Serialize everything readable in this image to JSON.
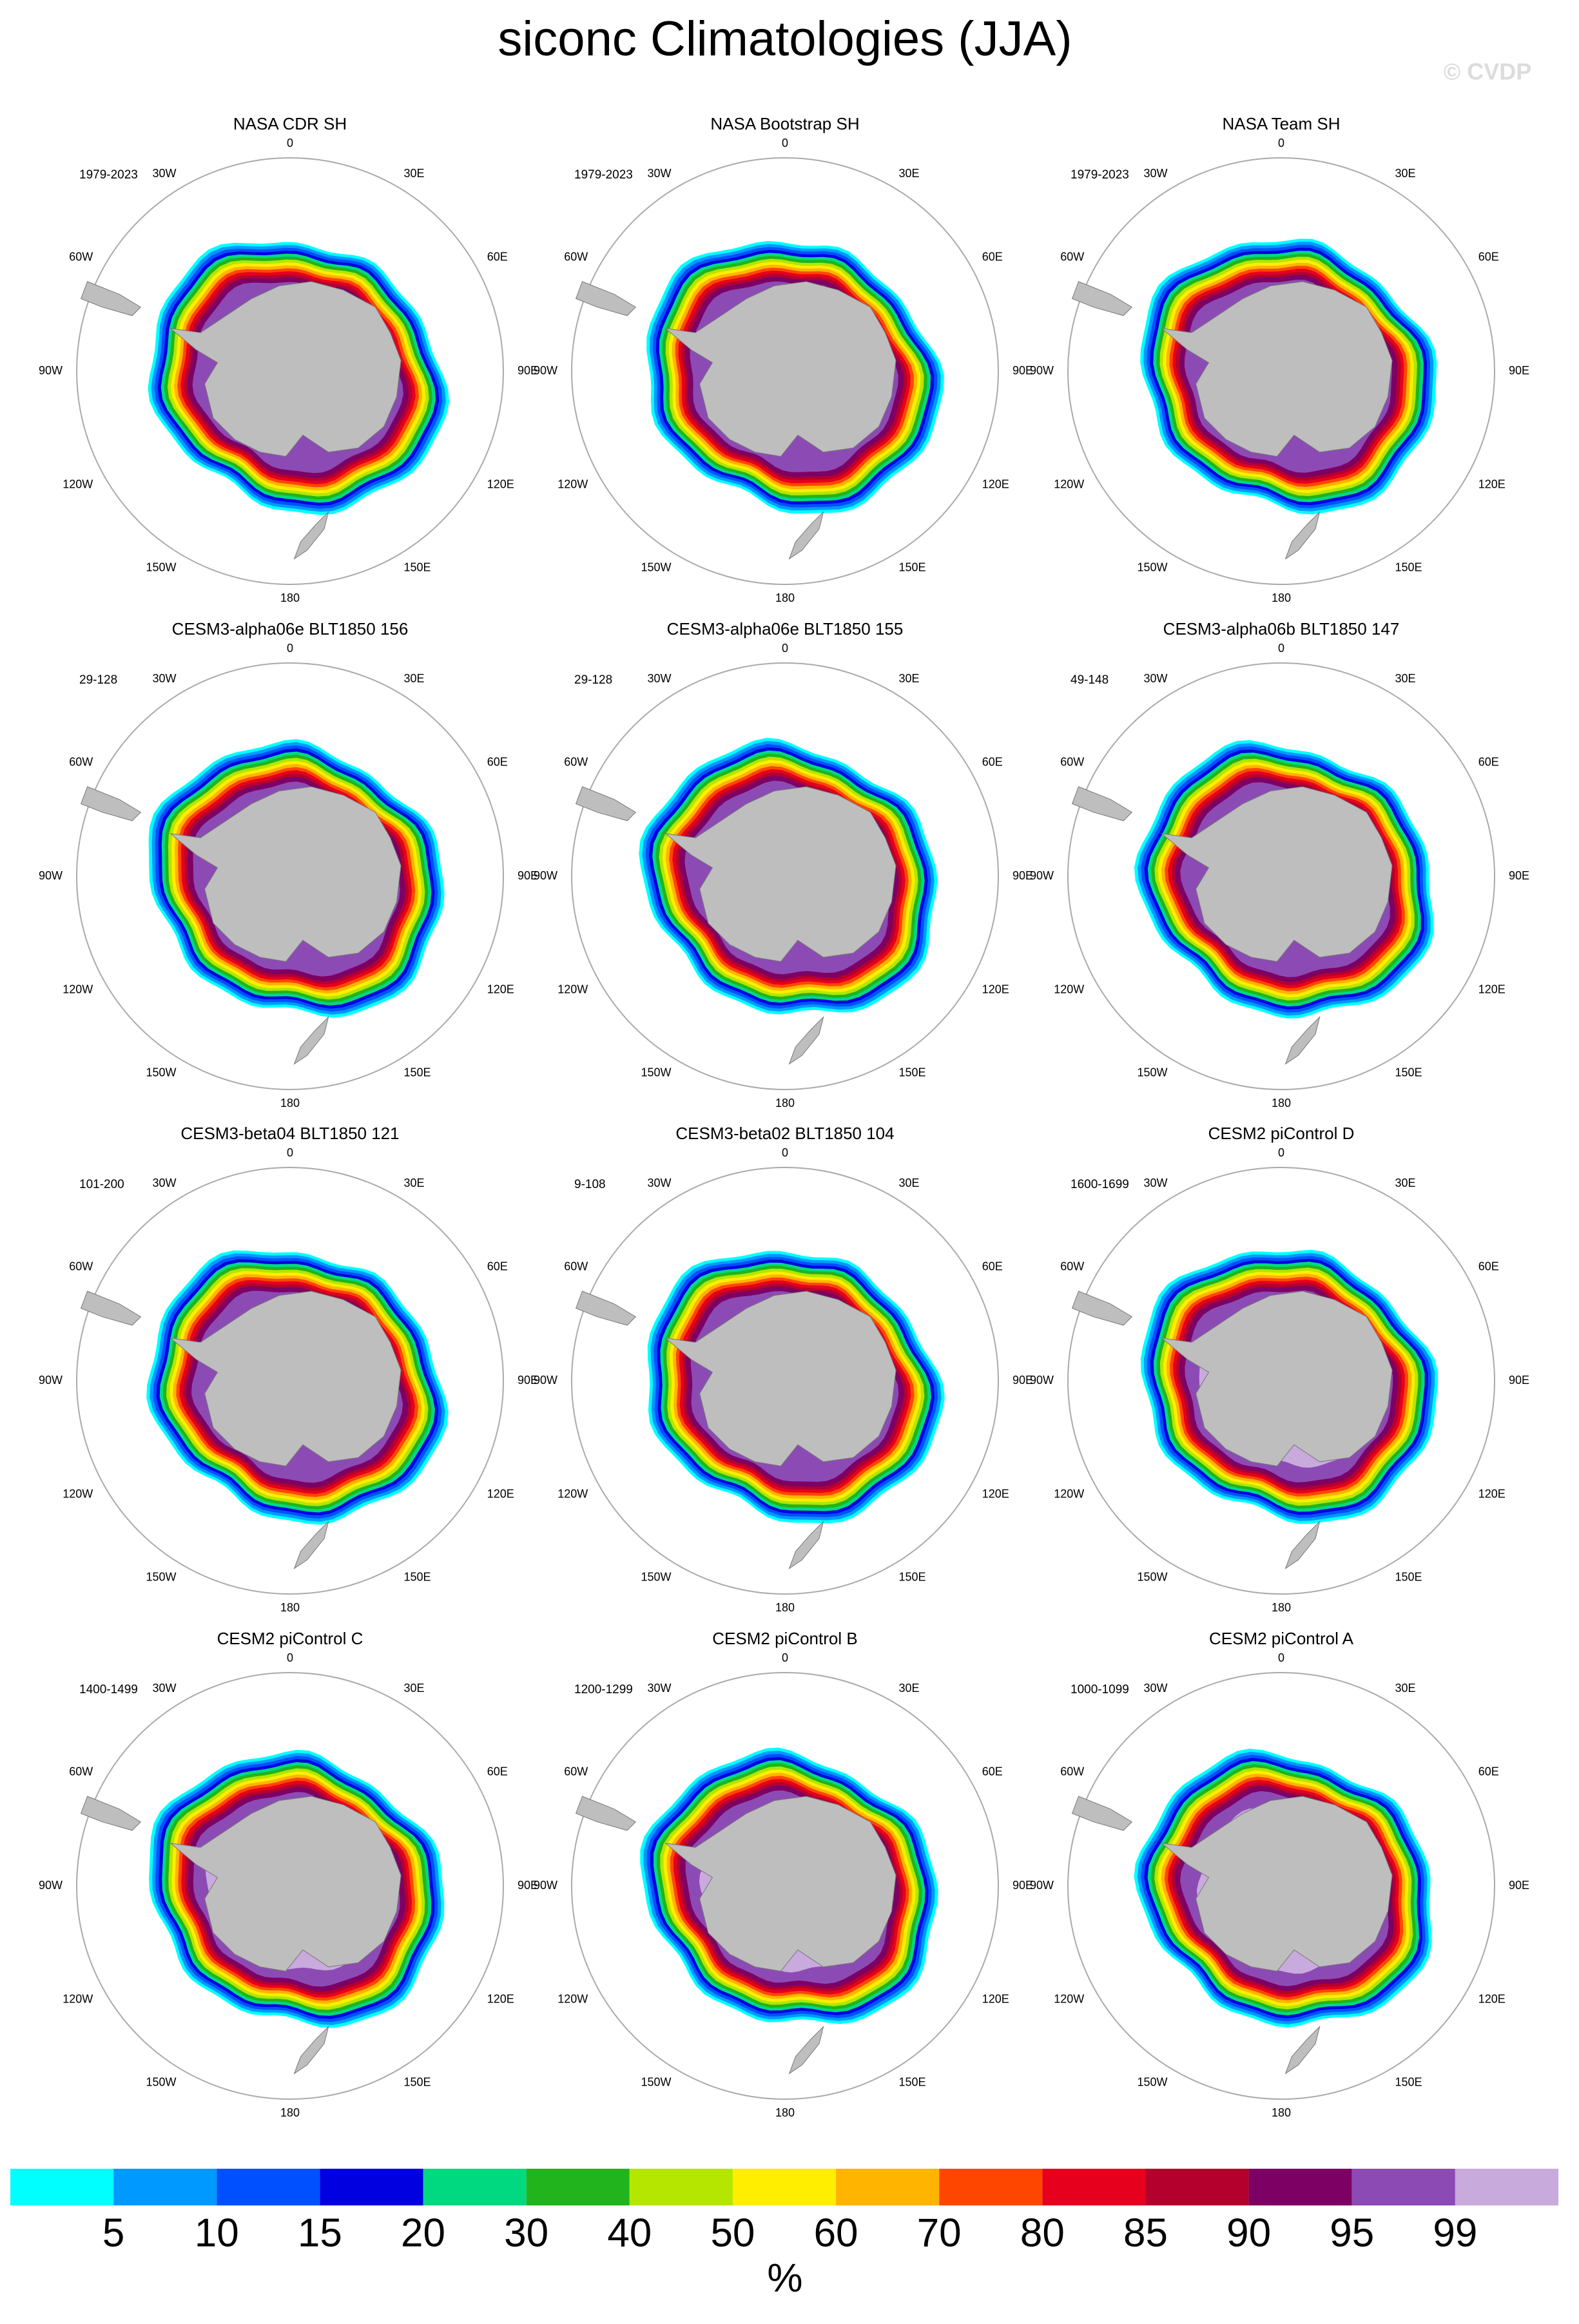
{
  "title": "siconc Climatologies (JJA)",
  "watermark": "© CVDP",
  "longitude_labels": [
    "0",
    "30E",
    "60E",
    "90E",
    "120E",
    "150E",
    "180",
    "150W",
    "120W",
    "90W",
    "60W",
    "30W"
  ],
  "panels": [
    {
      "title": "NASA CDR SH",
      "years": "1979-2023"
    },
    {
      "title": "NASA Bootstrap SH",
      "years": "1979-2023"
    },
    {
      "title": "NASA Team SH",
      "years": "1979-2023"
    },
    {
      "title": "CESM3-alpha06e BLT1850 156",
      "years": "29-128"
    },
    {
      "title": "CESM3-alpha06e BLT1850 155",
      "years": "29-128"
    },
    {
      "title": "CESM3-alpha06b BLT1850 147",
      "years": "49-148"
    },
    {
      "title": "CESM3-beta04 BLT1850 121",
      "years": "101-200"
    },
    {
      "title": "CESM3-beta02 BLT1850 104",
      "years": "9-108"
    },
    {
      "title": "CESM2 piControl D",
      "years": "1600-1699"
    },
    {
      "title": "CESM2 piControl C",
      "years": "1400-1499"
    },
    {
      "title": "CESM2 piControl B",
      "years": "1200-1299"
    },
    {
      "title": "CESM2 piControl A",
      "years": "1000-1099"
    }
  ],
  "colorbar": {
    "levels": [
      5,
      10,
      15,
      20,
      30,
      40,
      50,
      60,
      70,
      80,
      85,
      90,
      95,
      99
    ],
    "colors": [
      "#00ffff",
      "#0099ff",
      "#0050ff",
      "#0000e0",
      "#00d97f",
      "#21b41c",
      "#b4e600",
      "#ffee00",
      "#ffb400",
      "#ff4600",
      "#e6001e",
      "#b4002d",
      "#7d0064",
      "#8c4bb4",
      "#c8aadc"
    ],
    "unit": "%"
  }
}
